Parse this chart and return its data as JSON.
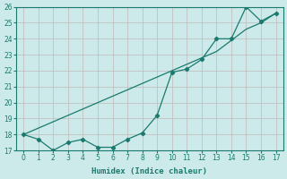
{
  "title": "",
  "xlabel": "Humidex (Indice chaleur)",
  "x": [
    0,
    1,
    2,
    3,
    4,
    5,
    6,
    7,
    8,
    9,
    10,
    11,
    12,
    13,
    14,
    15,
    16,
    17
  ],
  "line_markers": [
    18.0,
    17.7,
    17.0,
    17.5,
    17.7,
    17.2,
    17.2,
    17.7,
    18.1,
    19.2,
    21.9,
    22.1,
    22.7,
    24.0,
    24.0,
    26.0,
    25.1,
    25.6
  ],
  "line_smooth": [
    18.0,
    18.4,
    18.8,
    19.2,
    19.6,
    20.0,
    20.4,
    20.8,
    21.2,
    21.6,
    22.0,
    22.4,
    22.8,
    23.2,
    23.9,
    24.6,
    25.0,
    25.6
  ],
  "color": "#1a7a6e",
  "bg_color": "#cdeaea",
  "grid_color": "#c0b8b8",
  "ylim": [
    17,
    26
  ],
  "xlim": [
    -0.5,
    17.5
  ],
  "yticks": [
    17,
    18,
    19,
    20,
    21,
    22,
    23,
    24,
    25,
    26
  ],
  "xticks": [
    0,
    1,
    2,
    3,
    4,
    5,
    6,
    7,
    8,
    9,
    10,
    11,
    12,
    13,
    14,
    15,
    16,
    17
  ]
}
